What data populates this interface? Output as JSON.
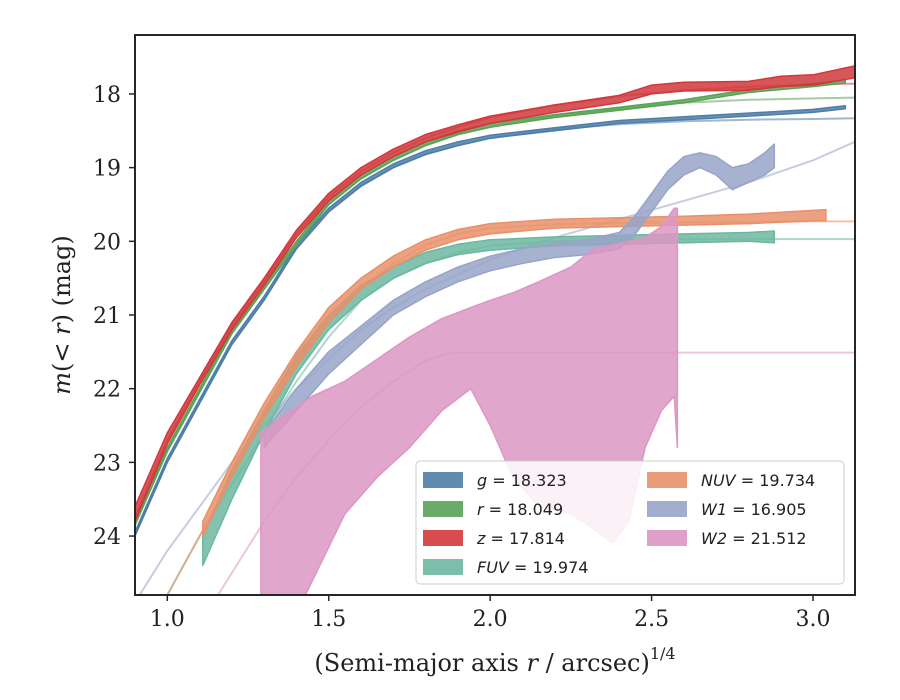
{
  "chart_data": {
    "type": "line",
    "xlabel": "(Semi-major axis r / arcsec)1/4",
    "ylabel": "m(< r) (mag)",
    "xlim": [
      0.9,
      3.13
    ],
    "ylim": [
      24.8,
      17.2
    ],
    "y_inverted": true,
    "xticks": [
      1.0,
      1.5,
      2.0,
      2.5,
      3.0
    ],
    "xtick_labels": [
      "1.0",
      "1.5",
      "2.0",
      "2.5",
      "3.0"
    ],
    "yticks": [
      18,
      19,
      20,
      21,
      22,
      23,
      24
    ],
    "ytick_labels": [
      "18",
      "19",
      "20",
      "21",
      "22",
      "23",
      "24"
    ],
    "grid": false,
    "legend_position": "lower-right",
    "legend": [
      {
        "label": "g = 18.323",
        "color": "#4e7ea8"
      },
      {
        "label": "r = 18.049",
        "color": "#5aa356"
      },
      {
        "label": "z = 17.814",
        "color": "#d1383c"
      },
      {
        "label": "FUV = 19.974",
        "color": "#6db7a0"
      },
      {
        "label": "NUV = 19.734",
        "color": "#e9906a"
      },
      {
        "label": "W1 = 16.905",
        "color": "#98a4c8"
      },
      {
        "label": "W2 = 21.512",
        "color": "#dc96c3"
      }
    ],
    "series": [
      {
        "name": "g = 18.323",
        "color": "#4e7ea8",
        "band_x": [
          0.9,
          1.0,
          1.1,
          1.2,
          1.3,
          1.4,
          1.5,
          1.6,
          1.7,
          1.8,
          1.9,
          2.0,
          2.2,
          2.4,
          2.6,
          2.8,
          3.0,
          3.1
        ],
        "band_lo": [
          24.0,
          23.0,
          22.2,
          21.4,
          20.8,
          20.1,
          19.6,
          19.25,
          19.0,
          18.82,
          18.7,
          18.6,
          18.5,
          18.4,
          18.35,
          18.3,
          18.25,
          18.2
        ],
        "band_hi": [
          23.95,
          22.95,
          22.15,
          21.35,
          20.75,
          20.05,
          19.55,
          19.2,
          18.95,
          18.77,
          18.65,
          18.56,
          18.46,
          18.36,
          18.31,
          18.26,
          18.21,
          18.16
        ],
        "model_x": [
          0.9,
          1.0,
          1.1,
          1.2,
          1.3,
          1.4,
          1.5,
          1.6,
          1.7,
          1.8,
          1.9,
          2.0,
          2.2,
          2.4,
          2.6,
          2.8,
          3.0,
          3.13
        ],
        "model_y": [
          23.95,
          22.95,
          22.15,
          21.35,
          20.75,
          20.1,
          19.6,
          19.25,
          19.0,
          18.82,
          18.7,
          18.6,
          18.48,
          18.41,
          18.37,
          18.35,
          18.34,
          18.33
        ]
      },
      {
        "name": "r = 18.049",
        "color": "#5aa356",
        "band_x": [
          0.9,
          1.0,
          1.1,
          1.2,
          1.3,
          1.4,
          1.5,
          1.6,
          1.7,
          1.8,
          1.9,
          2.0,
          2.2,
          2.4,
          2.6,
          2.8,
          3.0,
          3.1
        ],
        "band_lo": [
          23.85,
          22.85,
          22.05,
          21.25,
          20.65,
          20.05,
          19.5,
          19.15,
          18.9,
          18.7,
          18.55,
          18.45,
          18.32,
          18.22,
          18.12,
          17.98,
          17.9,
          17.85
        ],
        "band_hi": [
          23.8,
          22.8,
          22.0,
          21.2,
          20.6,
          20.0,
          19.45,
          19.1,
          18.85,
          18.65,
          18.5,
          18.4,
          18.28,
          18.18,
          18.08,
          17.94,
          17.86,
          17.81
        ],
        "model_x": [
          0.9,
          1.0,
          1.1,
          1.2,
          1.3,
          1.4,
          1.5,
          1.6,
          1.7,
          1.8,
          1.9,
          2.0,
          2.2,
          2.4,
          2.6,
          2.8,
          3.0,
          3.13
        ],
        "model_y": [
          23.85,
          22.85,
          22.05,
          21.25,
          20.65,
          20.05,
          19.5,
          19.15,
          18.9,
          18.7,
          18.55,
          18.45,
          18.3,
          18.2,
          18.12,
          18.08,
          18.06,
          18.05
        ]
      },
      {
        "name": "z = 17.814",
        "color": "#d1383c",
        "band_x": [
          0.9,
          1.0,
          1.1,
          1.2,
          1.3,
          1.4,
          1.5,
          1.6,
          1.7,
          1.8,
          1.9,
          2.0,
          2.2,
          2.4,
          2.5,
          2.6,
          2.8,
          2.9,
          3.0,
          3.13
        ],
        "band_lo": [
          23.8,
          22.75,
          21.95,
          21.2,
          20.6,
          19.95,
          19.45,
          19.1,
          18.85,
          18.65,
          18.52,
          18.4,
          18.25,
          18.12,
          18.0,
          17.96,
          17.95,
          17.9,
          17.88,
          17.78
        ],
        "band_hi": [
          23.6,
          22.6,
          21.85,
          21.1,
          20.5,
          19.85,
          19.35,
          19.0,
          18.75,
          18.55,
          18.42,
          18.3,
          18.15,
          18.02,
          17.88,
          17.84,
          17.83,
          17.76,
          17.74,
          17.62
        ],
        "model_x": [
          0.9,
          1.0,
          1.1,
          1.2,
          1.3,
          1.4,
          1.5,
          1.6,
          1.7,
          1.8,
          1.9,
          2.0,
          2.2,
          2.4,
          2.6,
          2.8,
          3.0,
          3.13
        ],
        "model_y": [
          23.75,
          22.7,
          21.9,
          21.15,
          20.55,
          19.9,
          19.4,
          19.05,
          18.8,
          18.6,
          18.45,
          18.32,
          18.15,
          18.03,
          17.95,
          17.9,
          17.87,
          17.86
        ]
      },
      {
        "name": "FUV = 19.974",
        "color": "#6db7a0",
        "band_x": [
          1.11,
          1.2,
          1.3,
          1.4,
          1.5,
          1.6,
          1.7,
          1.8,
          1.9,
          2.0,
          2.2,
          2.4,
          2.6,
          2.8,
          2.88
        ],
        "band_lo": [
          24.4,
          23.5,
          22.6,
          21.8,
          21.2,
          20.8,
          20.5,
          20.3,
          20.18,
          20.12,
          20.06,
          20.04,
          20.02,
          20.0,
          20.02
        ],
        "band_hi": [
          24.0,
          23.1,
          22.3,
          21.55,
          21.0,
          20.6,
          20.35,
          20.15,
          20.04,
          19.98,
          19.94,
          19.92,
          19.9,
          19.88,
          19.86
        ],
        "model_x": [
          0.9,
          1.0,
          1.1,
          1.2,
          1.3,
          1.4,
          1.5,
          1.6,
          1.7,
          1.8,
          1.9,
          2.0,
          2.2,
          2.4,
          2.6,
          2.8,
          3.0,
          3.13
        ],
        "model_y": [
          25.6,
          24.8,
          24.0,
          23.3,
          22.6,
          21.9,
          21.3,
          20.8,
          20.5,
          20.3,
          20.15,
          20.06,
          20.0,
          19.98,
          19.97,
          19.97,
          19.97,
          19.97
        ]
      },
      {
        "name": "NUV = 19.734",
        "color": "#e9906a",
        "band_x": [
          1.11,
          1.2,
          1.3,
          1.4,
          1.5,
          1.6,
          1.7,
          1.8,
          1.9,
          2.0,
          2.2,
          2.4,
          2.6,
          2.8,
          3.0,
          3.04
        ],
        "band_lo": [
          24.0,
          23.2,
          22.4,
          21.7,
          21.1,
          20.65,
          20.35,
          20.12,
          19.98,
          19.9,
          19.82,
          19.8,
          19.78,
          19.76,
          19.72,
          19.72
        ],
        "band_hi": [
          23.8,
          23.0,
          22.2,
          21.5,
          20.9,
          20.5,
          20.2,
          19.98,
          19.84,
          19.76,
          19.7,
          19.68,
          19.66,
          19.63,
          19.58,
          19.57
        ],
        "model_x": [
          0.9,
          1.0,
          1.1,
          1.2,
          1.3,
          1.4,
          1.5,
          1.6,
          1.7,
          1.8,
          1.9,
          2.0,
          2.2,
          2.4,
          2.6,
          2.8,
          3.0,
          3.13
        ],
        "model_y": [
          25.6,
          24.8,
          24.0,
          23.2,
          22.4,
          21.7,
          21.1,
          20.65,
          20.3,
          20.05,
          19.9,
          19.82,
          19.77,
          19.75,
          19.74,
          19.74,
          19.73,
          19.73
        ]
      },
      {
        "name": "W1 = 16.905",
        "color": "#98a4c8",
        "band_x": [
          1.3,
          1.4,
          1.5,
          1.6,
          1.7,
          1.8,
          1.9,
          2.0,
          2.1,
          2.2,
          2.3,
          2.4,
          2.45,
          2.5,
          2.55,
          2.6,
          2.65,
          2.7,
          2.75,
          2.8,
          2.85,
          2.88
        ],
        "band_lo": [
          22.8,
          22.3,
          21.8,
          21.4,
          21.0,
          20.75,
          20.55,
          20.4,
          20.3,
          20.22,
          20.18,
          20.1,
          19.9,
          19.6,
          19.3,
          19.1,
          19.0,
          19.1,
          19.3,
          19.2,
          19.1,
          19.0
        ],
        "band_hi": [
          22.6,
          22.0,
          21.5,
          21.15,
          20.8,
          20.55,
          20.35,
          20.2,
          20.1,
          20.02,
          19.98,
          19.88,
          19.65,
          19.35,
          19.05,
          18.85,
          18.8,
          18.85,
          19.0,
          18.95,
          18.8,
          18.68
        ],
        "model_x": [
          0.9,
          1.0,
          1.1,
          1.2,
          1.3,
          1.4,
          1.5,
          1.6,
          1.7,
          1.8,
          1.9,
          2.0,
          2.2,
          2.4,
          2.6,
          2.8,
          3.0,
          3.13
        ],
        "model_y": [
          24.9,
          24.2,
          23.6,
          23.0,
          22.5,
          22.0,
          21.6,
          21.2,
          20.9,
          20.65,
          20.45,
          20.25,
          19.95,
          19.7,
          19.45,
          19.2,
          18.9,
          18.65
        ]
      },
      {
        "name": "W2 = 21.512",
        "color": "#dc96c3",
        "band_x": [
          1.29,
          1.35,
          1.45,
          1.55,
          1.65,
          1.75,
          1.85,
          1.94,
          2.0,
          2.07,
          2.15,
          2.25,
          2.32,
          2.38,
          2.43,
          2.48,
          2.53,
          2.57,
          2.58
        ],
        "band_lo": [
          24.8,
          25.5,
          24.6,
          23.7,
          23.2,
          22.8,
          22.3,
          22.0,
          22.5,
          23.2,
          23.6,
          23.7,
          23.9,
          24.1,
          23.8,
          22.8,
          22.3,
          22.1,
          22.8
        ],
        "band_hi": [
          22.6,
          22.4,
          22.1,
          21.9,
          21.6,
          21.3,
          21.05,
          20.9,
          20.8,
          20.7,
          20.55,
          20.35,
          20.1,
          20.05,
          20.0,
          19.95,
          19.8,
          19.55,
          19.55
        ],
        "model_x": [
          1.1,
          1.2,
          1.3,
          1.4,
          1.5,
          1.6,
          1.7,
          1.8,
          1.88,
          2.0,
          2.2,
          2.4,
          2.6,
          2.8,
          3.0,
          3.13
        ],
        "model_y": [
          25.2,
          24.5,
          23.8,
          23.2,
          22.7,
          22.25,
          21.9,
          21.62,
          21.51,
          21.51,
          21.51,
          21.51,
          21.51,
          21.51,
          21.51,
          21.51
        ]
      }
    ]
  }
}
